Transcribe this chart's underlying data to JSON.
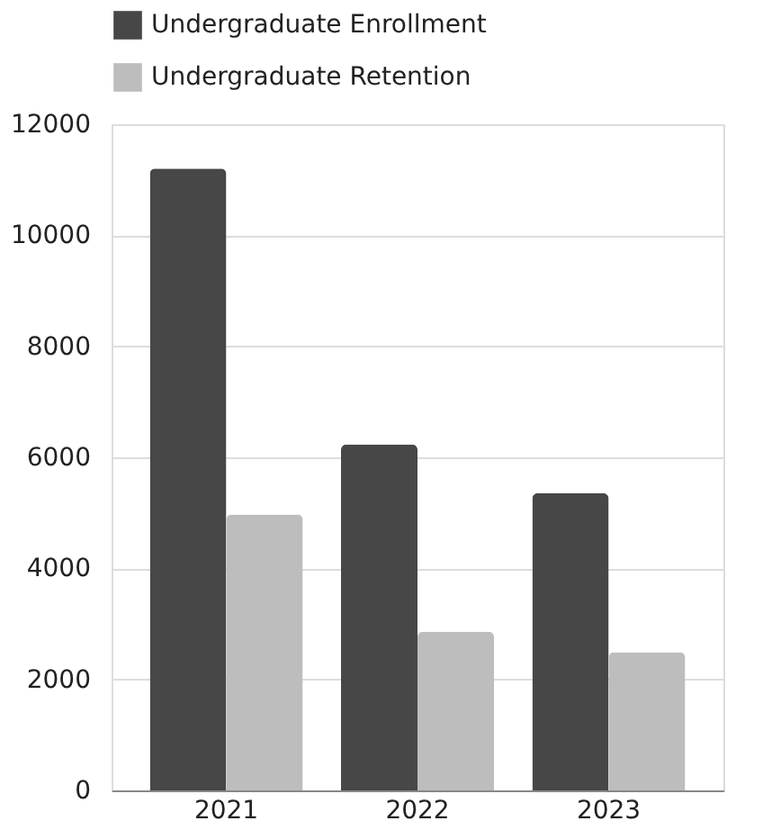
{
  "chart_data": {
    "type": "bar",
    "categories": [
      "2021",
      "2022",
      "2023"
    ],
    "series": [
      {
        "name": "Undergraduate Enrollment",
        "color": "#474747",
        "values": [
          11200,
          6230,
          5350
        ]
      },
      {
        "name": "Undergraduate Retention",
        "color": "#bdbdbd",
        "values": [
          4970,
          2860,
          2490
        ]
      }
    ],
    "ylim": [
      0,
      12000
    ],
    "yticks": [
      0,
      2000,
      4000,
      6000,
      8000,
      10000,
      12000
    ],
    "grid": "y",
    "legend": "top"
  }
}
